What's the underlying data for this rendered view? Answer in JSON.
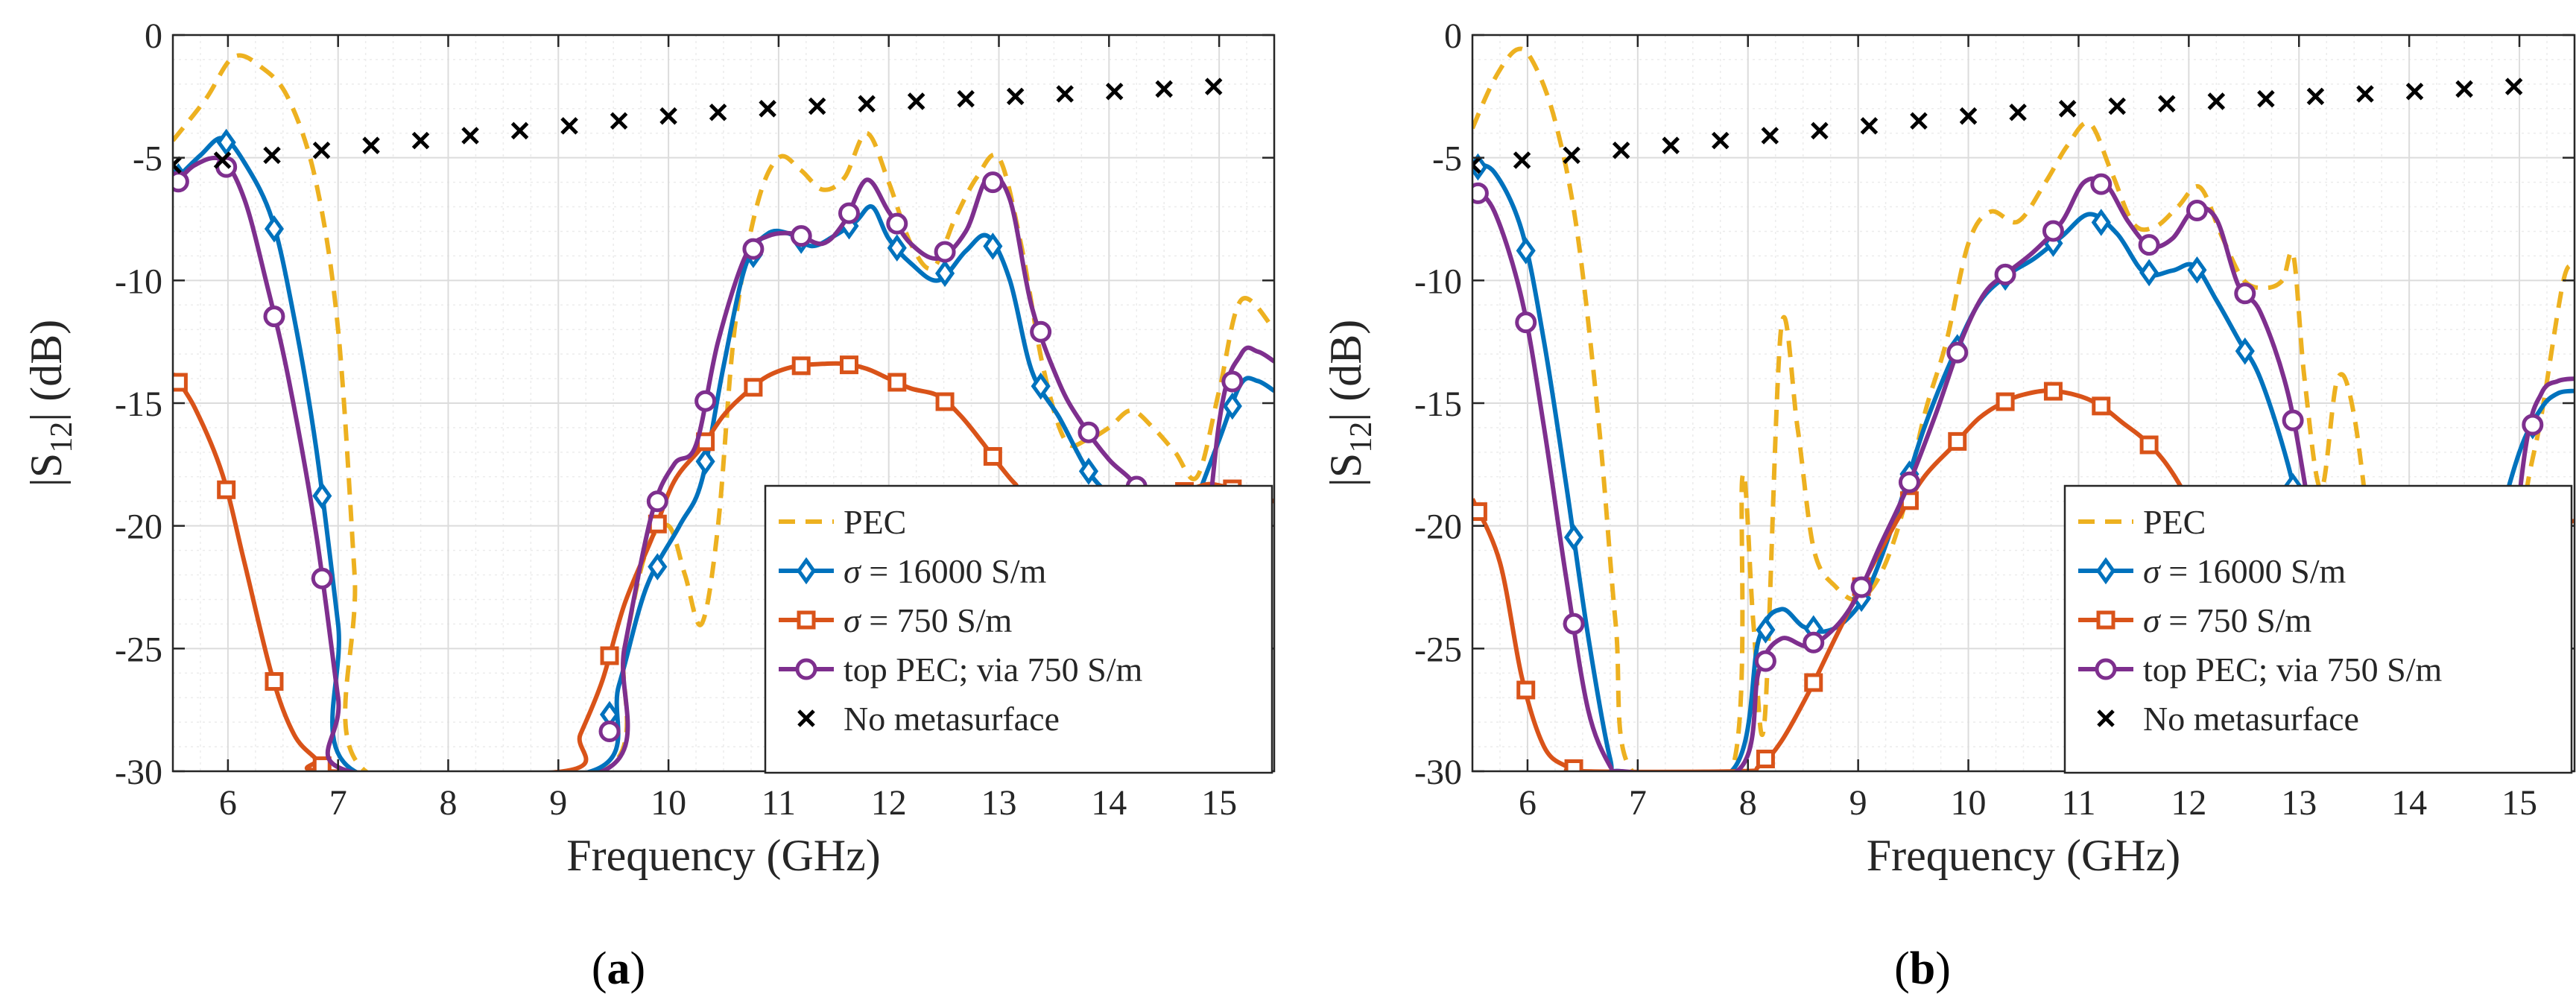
{
  "chart_data": [
    {
      "type": "line",
      "panel": "(a)",
      "xlabel": "Frequency (GHz)",
      "ylabel": "|S12| (dB)",
      "xlim": [
        5.5,
        15.5
      ],
      "ylim": [
        -30,
        0
      ],
      "xticks": [
        6,
        7,
        8,
        9,
        10,
        11,
        12,
        13,
        14,
        15
      ],
      "yticks": [
        0,
        -5,
        -10,
        -15,
        -20,
        -25,
        -30
      ],
      "grid": true,
      "legend_position": "bottom-right",
      "series": [
        {
          "name": "PEC",
          "color": "#EDB120",
          "style": "dashed",
          "x": [
            5.5,
            5.8,
            6.05,
            6.3,
            6.55,
            6.8,
            7.0,
            7.15,
            7.25,
            9.4,
            9.6,
            9.8,
            10.0,
            10.15,
            10.3,
            10.45,
            10.6,
            10.8,
            11.0,
            11.2,
            11.4,
            11.6,
            11.8,
            12.0,
            12.2,
            12.4,
            12.6,
            12.8,
            13.0,
            13.2,
            13.4,
            13.6,
            13.8,
            14.0,
            14.2,
            14.4,
            14.6,
            14.8,
            15.0,
            15.2,
            15.5
          ],
          "y": [
            -4.3,
            -2.6,
            -0.9,
            -1.3,
            -2.6,
            -6.0,
            -12.0,
            -22.0,
            -30.0,
            -30.0,
            -25.0,
            -21.0,
            -20.0,
            -22.0,
            -24.0,
            -20.0,
            -12.0,
            -7.0,
            -5.0,
            -5.5,
            -6.3,
            -5.8,
            -4.0,
            -6.0,
            -8.5,
            -9.5,
            -7.5,
            -5.8,
            -5.0,
            -8.5,
            -13.5,
            -16.5,
            -16.5,
            -16.0,
            -15.3,
            -16.0,
            -17.0,
            -18.0,
            -14.5,
            -10.8,
            -12.0
          ]
        },
        {
          "name": "σ = 16000 S/m",
          "color": "#0072BD",
          "marker": "diamond",
          "x": [
            5.5,
            5.75,
            5.95,
            6.15,
            6.4,
            6.6,
            6.8,
            7.0,
            7.15,
            9.3,
            9.55,
            9.8,
            10.1,
            10.3,
            10.5,
            10.7,
            10.9,
            11.1,
            11.3,
            11.5,
            11.7,
            11.85,
            12.0,
            12.2,
            12.45,
            12.7,
            12.9,
            13.1,
            13.3,
            13.55,
            13.8,
            14.0,
            14.2,
            14.4,
            14.55,
            14.65,
            14.75,
            15.0,
            15.2,
            15.35,
            15.5
          ],
          "y": [
            -6.0,
            -4.9,
            -4.2,
            -5.2,
            -7.5,
            -11.5,
            -16.8,
            -24.0,
            -30.0,
            -30.0,
            -26.5,
            -22.5,
            -20.0,
            -18.2,
            -13.5,
            -9.4,
            -8.1,
            -8.1,
            -8.6,
            -8.2,
            -7.6,
            -7.0,
            -8.3,
            -9.3,
            -10.0,
            -8.8,
            -8.2,
            -10.0,
            -13.7,
            -15.6,
            -17.7,
            -18.7,
            -19.2,
            -19.8,
            -20.5,
            -21.0,
            -19.5,
            -16.5,
            -14.2,
            -14.1,
            -14.5
          ]
        },
        {
          "name": "σ = 750 S/m",
          "color": "#D95319",
          "marker": "square",
          "x": [
            5.5,
            5.7,
            5.95,
            6.15,
            6.4,
            6.6,
            6.8,
            6.9,
            9.05,
            9.2,
            9.4,
            9.6,
            9.85,
            10.05,
            10.3,
            10.5,
            10.7,
            10.9,
            11.15,
            11.4,
            11.6,
            11.8,
            12.0,
            12.2,
            12.45,
            12.65,
            12.85,
            13.0,
            13.15,
            13.3,
            14.55,
            14.75,
            14.9,
            15.05,
            15.2,
            15.35,
            15.5
          ],
          "y": [
            -13.8,
            -15.2,
            -17.9,
            -21.5,
            -26.1,
            -28.5,
            -29.5,
            -30.0,
            -30.0,
            -28.5,
            -26.3,
            -23.2,
            -20.5,
            -18.2,
            -16.8,
            -15.5,
            -14.6,
            -13.9,
            -13.5,
            -13.4,
            -13.4,
            -13.6,
            -14.0,
            -14.4,
            -14.7,
            -15.5,
            -16.6,
            -17.5,
            -18.3,
            -18.8,
            -18.8,
            -18.5,
            -18.3,
            -18.4,
            -18.6,
            -18.8,
            -19.0
          ]
        },
        {
          "name": "top PEC; via 750 S/m",
          "color": "#7E2F8E",
          "marker": "circle",
          "x": [
            5.5,
            5.7,
            5.95,
            6.15,
            6.35,
            6.55,
            6.8,
            7.0,
            7.1,
            9.4,
            9.6,
            9.85,
            10.05,
            10.25,
            10.45,
            10.7,
            10.9,
            11.15,
            11.4,
            11.6,
            11.8,
            12.0,
            12.2,
            12.45,
            12.7,
            12.9,
            13.1,
            13.3,
            13.55,
            13.75,
            14.0,
            14.25,
            14.5,
            14.65,
            14.75,
            15.0,
            15.2,
            15.35,
            15.5
          ],
          "y": [
            -6.2,
            -5.3,
            -5.1,
            -6.7,
            -10.1,
            -14.0,
            -20.3,
            -27.0,
            -30.0,
            -30.0,
            -25.0,
            -19.5,
            -17.5,
            -16.7,
            -12.5,
            -9.0,
            -8.2,
            -8.1,
            -8.5,
            -7.6,
            -5.9,
            -7.2,
            -8.5,
            -9.1,
            -8.0,
            -5.8,
            -6.7,
            -11.1,
            -14.2,
            -15.8,
            -17.3,
            -18.4,
            -20.5,
            -26.0,
            -27.0,
            -15.8,
            -13.0,
            -12.9,
            -13.3
          ]
        },
        {
          "name": "No metasurface",
          "color": "#000000",
          "marker": "x",
          "line": false,
          "x": [
            5.5,
            5.95,
            6.4,
            6.85,
            7.3,
            7.75,
            8.2,
            8.65,
            9.1,
            9.55,
            10.0,
            10.45,
            10.9,
            11.35,
            11.8,
            12.25,
            12.7,
            13.15,
            13.6,
            14.05,
            14.5,
            14.95
          ],
          "y": [
            -5.3,
            -5.1,
            -4.9,
            -4.7,
            -4.5,
            -4.3,
            -4.1,
            -3.9,
            -3.7,
            -3.5,
            -3.3,
            -3.15,
            -3.0,
            -2.9,
            -2.8,
            -2.7,
            -2.6,
            -2.5,
            -2.4,
            -2.3,
            -2.2,
            -2.1
          ]
        }
      ]
    },
    {
      "type": "line",
      "panel": "(b)",
      "xlabel": "Frequency (GHz)",
      "ylabel": "|S12| (dB)",
      "xlim": [
        5.5,
        15.5
      ],
      "ylim": [
        -30,
        0
      ],
      "xticks": [
        6,
        7,
        8,
        9,
        10,
        11,
        12,
        13,
        14,
        15
      ],
      "yticks": [
        0,
        -5,
        -10,
        -15,
        -20,
        -25,
        -30
      ],
      "grid": true,
      "legend_position": "bottom-right",
      "series": [
        {
          "name": "PEC",
          "color": "#EDB120",
          "style": "dashed",
          "x": [
            5.5,
            5.7,
            5.9,
            6.05,
            6.25,
            6.45,
            6.65,
            6.8,
            6.95,
            7.85,
            7.95,
            8.05,
            8.15,
            8.3,
            8.45,
            8.6,
            8.8,
            9.0,
            9.2,
            9.4,
            9.6,
            9.8,
            10.0,
            10.2,
            10.45,
            10.7,
            10.9,
            11.1,
            11.3,
            11.5,
            11.7,
            11.9,
            12.1,
            12.3,
            12.5,
            12.7,
            12.85,
            12.95,
            13.05,
            13.2,
            13.35,
            13.5,
            13.7,
            13.9,
            14.1,
            14.3,
            14.5,
            14.7,
            14.9,
            15.05,
            15.2,
            15.4,
            15.5
          ],
          "y": [
            -3.8,
            -1.8,
            -0.6,
            -1.1,
            -3.5,
            -8.0,
            -16.0,
            -24.0,
            -30.0,
            -30.0,
            -18.0,
            -24.0,
            -28.0,
            -12.0,
            -16.0,
            -21.0,
            -22.5,
            -23.0,
            -22.0,
            -19.5,
            -15.5,
            -12.5,
            -8.5,
            -7.2,
            -7.6,
            -6.0,
            -4.5,
            -3.6,
            -5.6,
            -7.7,
            -7.8,
            -7.0,
            -6.2,
            -8.2,
            -10.0,
            -10.3,
            -10.0,
            -9.0,
            -14.0,
            -18.5,
            -14.0,
            -15.5,
            -22.5,
            -28.5,
            -29.0,
            -29.8,
            -29.6,
            -29.5,
            -25.0,
            -19.0,
            -15.5,
            -10.0,
            -9.5
          ]
        },
        {
          "name": "σ = 16000 S/m",
          "color": "#0072BD",
          "marker": "diamond",
          "x": [
            5.5,
            5.7,
            5.95,
            6.15,
            6.35,
            6.55,
            6.75,
            6.85,
            7.85,
            8.1,
            8.3,
            8.5,
            8.7,
            8.9,
            9.1,
            9.35,
            9.6,
            9.85,
            10.1,
            10.35,
            10.6,
            10.85,
            11.1,
            11.35,
            11.6,
            11.85,
            12.05,
            12.25,
            12.45,
            12.65,
            12.9,
            13.1,
            13.25,
            14.55,
            14.75,
            15.0,
            15.2,
            15.35,
            15.5
          ],
          "y": [
            -5.3,
            -5.6,
            -8.0,
            -12.5,
            -18.3,
            -24.5,
            -29.5,
            -30.0,
            -30.0,
            -24.6,
            -23.4,
            -24.1,
            -24.3,
            -23.8,
            -22.5,
            -19.5,
            -16.0,
            -13.2,
            -10.9,
            -9.8,
            -9.1,
            -8.2,
            -7.3,
            -8.1,
            -9.7,
            -9.6,
            -9.4,
            -10.8,
            -12.4,
            -14.0,
            -17.5,
            -21.5,
            -25.0,
            -25.0,
            -21.0,
            -17.0,
            -15.2,
            -14.6,
            -14.5
          ]
        },
        {
          "name": "σ = 750 S/m",
          "color": "#D95319",
          "marker": "square",
          "x": [
            5.5,
            5.75,
            5.95,
            6.15,
            6.35,
            6.5,
            7.9,
            8.1,
            8.3,
            8.55,
            8.8,
            9.05,
            9.35,
            9.6,
            9.85,
            10.1,
            10.35,
            10.55,
            10.75,
            11.0,
            11.2,
            11.4,
            11.6,
            11.8,
            12.0,
            12.2,
            12.4,
            12.6,
            12.8,
            13.0,
            14.8,
            15.0,
            15.2,
            15.35,
            15.5
          ],
          "y": [
            -18.9,
            -21.5,
            -26.2,
            -29.0,
            -29.8,
            -30.0,
            -30.0,
            -29.8,
            -28.8,
            -26.8,
            -24.5,
            -22.3,
            -19.8,
            -18.0,
            -16.8,
            -15.6,
            -14.9,
            -14.6,
            -14.5,
            -14.7,
            -15.1,
            -15.8,
            -16.5,
            -17.5,
            -19.0,
            -21.0,
            -23.5,
            -26.0,
            -28.8,
            -29.8,
            -29.8,
            -23.0,
            -21.0,
            -20.0,
            -19.8
          ]
        },
        {
          "name": "top PEC; via 750 S/m",
          "color": "#7E2F8E",
          "marker": "circle",
          "x": [
            5.5,
            5.7,
            5.95,
            6.15,
            6.35,
            6.55,
            6.75,
            6.85,
            7.9,
            8.1,
            8.3,
            8.55,
            8.8,
            9.0,
            9.2,
            9.45,
            9.7,
            9.95,
            10.15,
            10.35,
            10.6,
            10.85,
            11.05,
            11.25,
            11.45,
            11.65,
            11.85,
            12.05,
            12.25,
            12.45,
            12.65,
            12.9,
            13.1,
            13.3,
            13.55,
            13.8,
            14.0,
            14.2,
            14.4,
            14.6,
            14.8,
            15.05,
            15.2,
            15.35,
            15.5
          ],
          "y": [
            -6.2,
            -7.2,
            -10.8,
            -16.0,
            -22.1,
            -27.5,
            -29.8,
            -30.0,
            -30.0,
            -25.9,
            -24.6,
            -24.9,
            -24.1,
            -22.8,
            -20.8,
            -18.4,
            -15.5,
            -12.3,
            -10.5,
            -9.7,
            -8.8,
            -7.6,
            -6.0,
            -6.1,
            -7.6,
            -8.6,
            -8.3,
            -7.1,
            -7.5,
            -10.2,
            -11.3,
            -14.6,
            -19.5,
            -24.5,
            -28.5,
            -29.7,
            -29.8,
            -29.5,
            -29.0,
            -29.5,
            -26.5,
            -17.0,
            -14.6,
            -14.1,
            -14.0
          ]
        },
        {
          "name": "No metasurface",
          "color": "#000000",
          "marker": "x",
          "line": false,
          "x": [
            5.5,
            5.95,
            6.4,
            6.85,
            7.3,
            7.75,
            8.2,
            8.65,
            9.1,
            9.55,
            10.0,
            10.45,
            10.9,
            11.35,
            11.8,
            12.25,
            12.7,
            13.15,
            13.6,
            14.05,
            14.5,
            14.95
          ],
          "y": [
            -5.3,
            -5.1,
            -4.9,
            -4.7,
            -4.5,
            -4.3,
            -4.1,
            -3.9,
            -3.7,
            -3.5,
            -3.3,
            -3.15,
            -3.0,
            -2.9,
            -2.8,
            -2.7,
            -2.6,
            -2.5,
            -2.4,
            -2.3,
            -2.2,
            -2.1
          ]
        }
      ]
    }
  ],
  "captions": {
    "a": "a",
    "b": "b"
  },
  "legend": {
    "pec": "PEC",
    "s16000_prefix": "σ",
    "s16000_suffix": " = 16000 S/m",
    "s750_prefix": "σ",
    "s750_suffix": " = 750 S/m",
    "top_pec": "top PEC; via 750 S/m",
    "no_meta": "No metasurface"
  },
  "axis_text": {
    "xlabel": "Frequency (GHz)",
    "ylabel_open": "|S",
    "ylabel_sub": "12",
    "ylabel_close": "| (dB)"
  }
}
